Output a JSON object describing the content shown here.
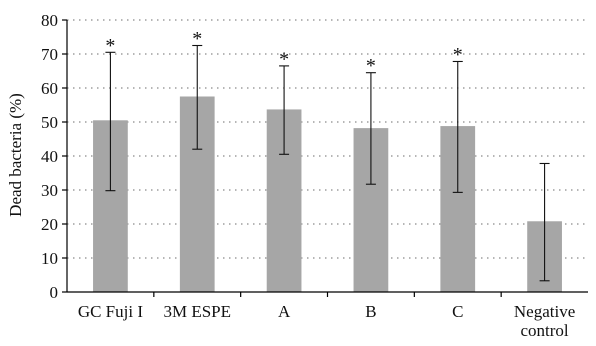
{
  "chart_data": {
    "type": "bar",
    "categories": [
      "GC Fuji I",
      "3M ESPE",
      "A",
      "B",
      "C",
      "Negative control"
    ],
    "category_label_lines": [
      [
        "GC Fuji I"
      ],
      [
        "3M ESPE"
      ],
      [
        "A"
      ],
      [
        "B"
      ],
      [
        "C"
      ],
      [
        "Negative",
        "control"
      ]
    ],
    "values": [
      50.5,
      57.5,
      53.7,
      48.2,
      48.8,
      20.8
    ],
    "error_upper": [
      70.5,
      72.5,
      66.5,
      64.5,
      67.8,
      37.8
    ],
    "error_lower": [
      29.8,
      42.0,
      40.5,
      31.7,
      29.3,
      3.3
    ],
    "significance_markers": [
      "*",
      "*",
      "*",
      "*",
      "*",
      ""
    ],
    "ylabel": "Dead bacteria (%)",
    "xlabel": "",
    "title": "",
    "ylim": [
      0,
      80
    ],
    "yticks": [
      0,
      10,
      20,
      30,
      40,
      50,
      60,
      70,
      80
    ],
    "grid": "dotted-horizontal",
    "bar_color": "#a6a6a6"
  }
}
